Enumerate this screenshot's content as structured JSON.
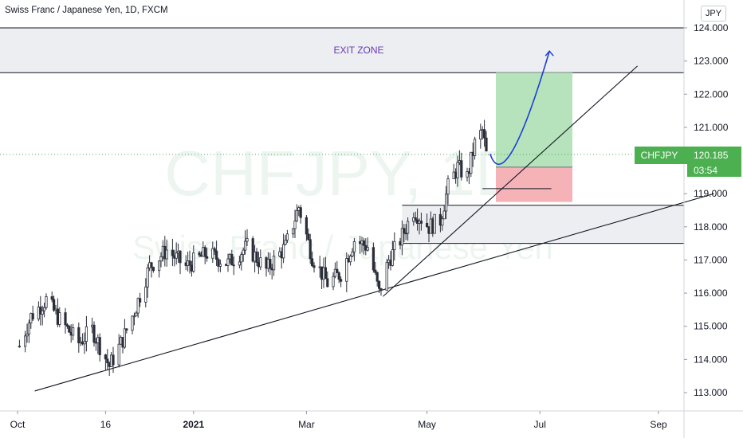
{
  "header": {
    "title": "Swiss Franc / Japanese Yen, 1D, FXCM",
    "currency": "JPY"
  },
  "watermark": {
    "symbol": "CHFJPY, 1D",
    "name": "Swiss Franc / Japanese Yen"
  },
  "price_tag": {
    "symbol": "CHFJPY",
    "price": "120.185",
    "countdown": "03:54",
    "color": "#4caf50"
  },
  "chart_data": {
    "type": "candlestick",
    "y_axis": {
      "ticks": [
        124.0,
        123.0,
        122.0,
        121.0,
        120.0,
        119.0,
        118.0,
        117.0,
        116.0,
        115.0,
        114.0,
        113.0
      ],
      "tick_labels": [
        "124.000",
        "123.000",
        "122.000",
        "121.000",
        "120.000",
        "119.000",
        "118.000",
        "117.000",
        "116.000",
        "115.000",
        "114.000",
        "113.000"
      ],
      "range": [
        112.1,
        124.85
      ]
    },
    "x_axis": {
      "range": [
        "2020-10-04",
        "2021-09-30"
      ],
      "ticks": [
        {
          "date": "2020-10-01",
          "label": "Oct"
        },
        {
          "date": "2020-11-16",
          "label": "16"
        },
        {
          "date": "2021-01-01",
          "label": "2021"
        },
        {
          "date": "2021-03-01",
          "label": "Mar"
        },
        {
          "date": "2021-05-03",
          "label": "May"
        },
        {
          "date": "2021-07-01",
          "label": "Jul"
        },
        {
          "date": "2021-09-01",
          "label": "Sep"
        }
      ]
    },
    "approx_close_path": [
      {
        "date": "2020-10-02",
        "close": 114.4
      },
      {
        "date": "2020-10-08",
        "close": 115.3
      },
      {
        "date": "2020-10-16",
        "close": 115.8
      },
      {
        "date": "2020-10-23",
        "close": 115.2
      },
      {
        "date": "2020-11-02",
        "close": 114.5
      },
      {
        "date": "2020-11-09",
        "close": 114.9
      },
      {
        "date": "2020-11-18",
        "close": 113.8
      },
      {
        "date": "2020-11-25",
        "close": 114.6
      },
      {
        "date": "2020-12-02",
        "close": 115.6
      },
      {
        "date": "2020-12-09",
        "close": 116.8
      },
      {
        "date": "2020-12-18",
        "close": 117.3
      },
      {
        "date": "2020-12-28",
        "close": 116.8
      },
      {
        "date": "2021-01-08",
        "close": 117.2
      },
      {
        "date": "2021-01-19",
        "close": 116.9
      },
      {
        "date": "2021-01-29",
        "close": 117.4
      },
      {
        "date": "2021-02-08",
        "close": 116.7
      },
      {
        "date": "2021-02-18",
        "close": 117.4
      },
      {
        "date": "2021-02-25",
        "close": 118.6
      },
      {
        "date": "2021-03-04",
        "close": 117.1
      },
      {
        "date": "2021-03-12",
        "close": 116.3
      },
      {
        "date": "2021-03-19",
        "close": 116.6
      },
      {
        "date": "2021-03-26",
        "close": 117.6
      },
      {
        "date": "2021-04-02",
        "close": 117.4
      },
      {
        "date": "2021-04-08",
        "close": 116.0
      },
      {
        "date": "2021-04-13",
        "close": 117.0
      },
      {
        "date": "2021-04-19",
        "close": 117.6
      },
      {
        "date": "2021-04-26",
        "close": 118.5
      },
      {
        "date": "2021-05-04",
        "close": 118.0
      },
      {
        "date": "2021-05-10",
        "close": 118.2
      },
      {
        "date": "2021-05-14",
        "close": 119.2
      },
      {
        "date": "2021-05-19",
        "close": 119.8
      },
      {
        "date": "2021-05-24",
        "close": 119.5
      },
      {
        "date": "2021-05-28",
        "close": 120.5
      },
      {
        "date": "2021-06-01",
        "close": 120.9
      },
      {
        "date": "2021-06-03",
        "close": 120.185
      }
    ],
    "last_price": 120.185,
    "annotations": {
      "exit_zone": {
        "label": "EXIT ZONE",
        "top": 124.0,
        "bottom": 122.65
      },
      "support_zone": {
        "top": 118.65,
        "bottom": 117.5
      },
      "position_long": {
        "start": "2021-06-08",
        "end": "2021-07-18",
        "entry": 119.8,
        "target": 122.65,
        "stop": 118.75
      },
      "entry_marker": {
        "start": "2021-06-01",
        "end": "2021-07-07",
        "price": 119.15
      },
      "trendline_lower": {
        "start": {
          "date": "2020-10-10",
          "price": 113.05
        },
        "end": {
          "date": "2021-09-30",
          "price": 119.0
        }
      },
      "trendline_upper": {
        "start": {
          "date": "2021-04-10",
          "price": 115.9
        },
        "end": {
          "date": "2021-08-21",
          "price": 122.85
        }
      },
      "projection_curve": [
        {
          "date": "2021-06-05",
          "price": 120.2
        },
        {
          "date": "2021-06-14",
          "price": 119.85
        },
        {
          "date": "2021-06-28",
          "price": 121.2
        },
        {
          "date": "2021-07-06",
          "price": 123.3
        }
      ]
    },
    "colors": {
      "candle": "#2a2e39",
      "target_fill": "#b6e3bb",
      "stop_fill": "#f5b3b8",
      "zone_fill": "#eceef1",
      "zone_border": "#131722",
      "exit_label": "#673ab7",
      "projection": "#1e3ed8",
      "grid_line": "#4caf50"
    }
  }
}
